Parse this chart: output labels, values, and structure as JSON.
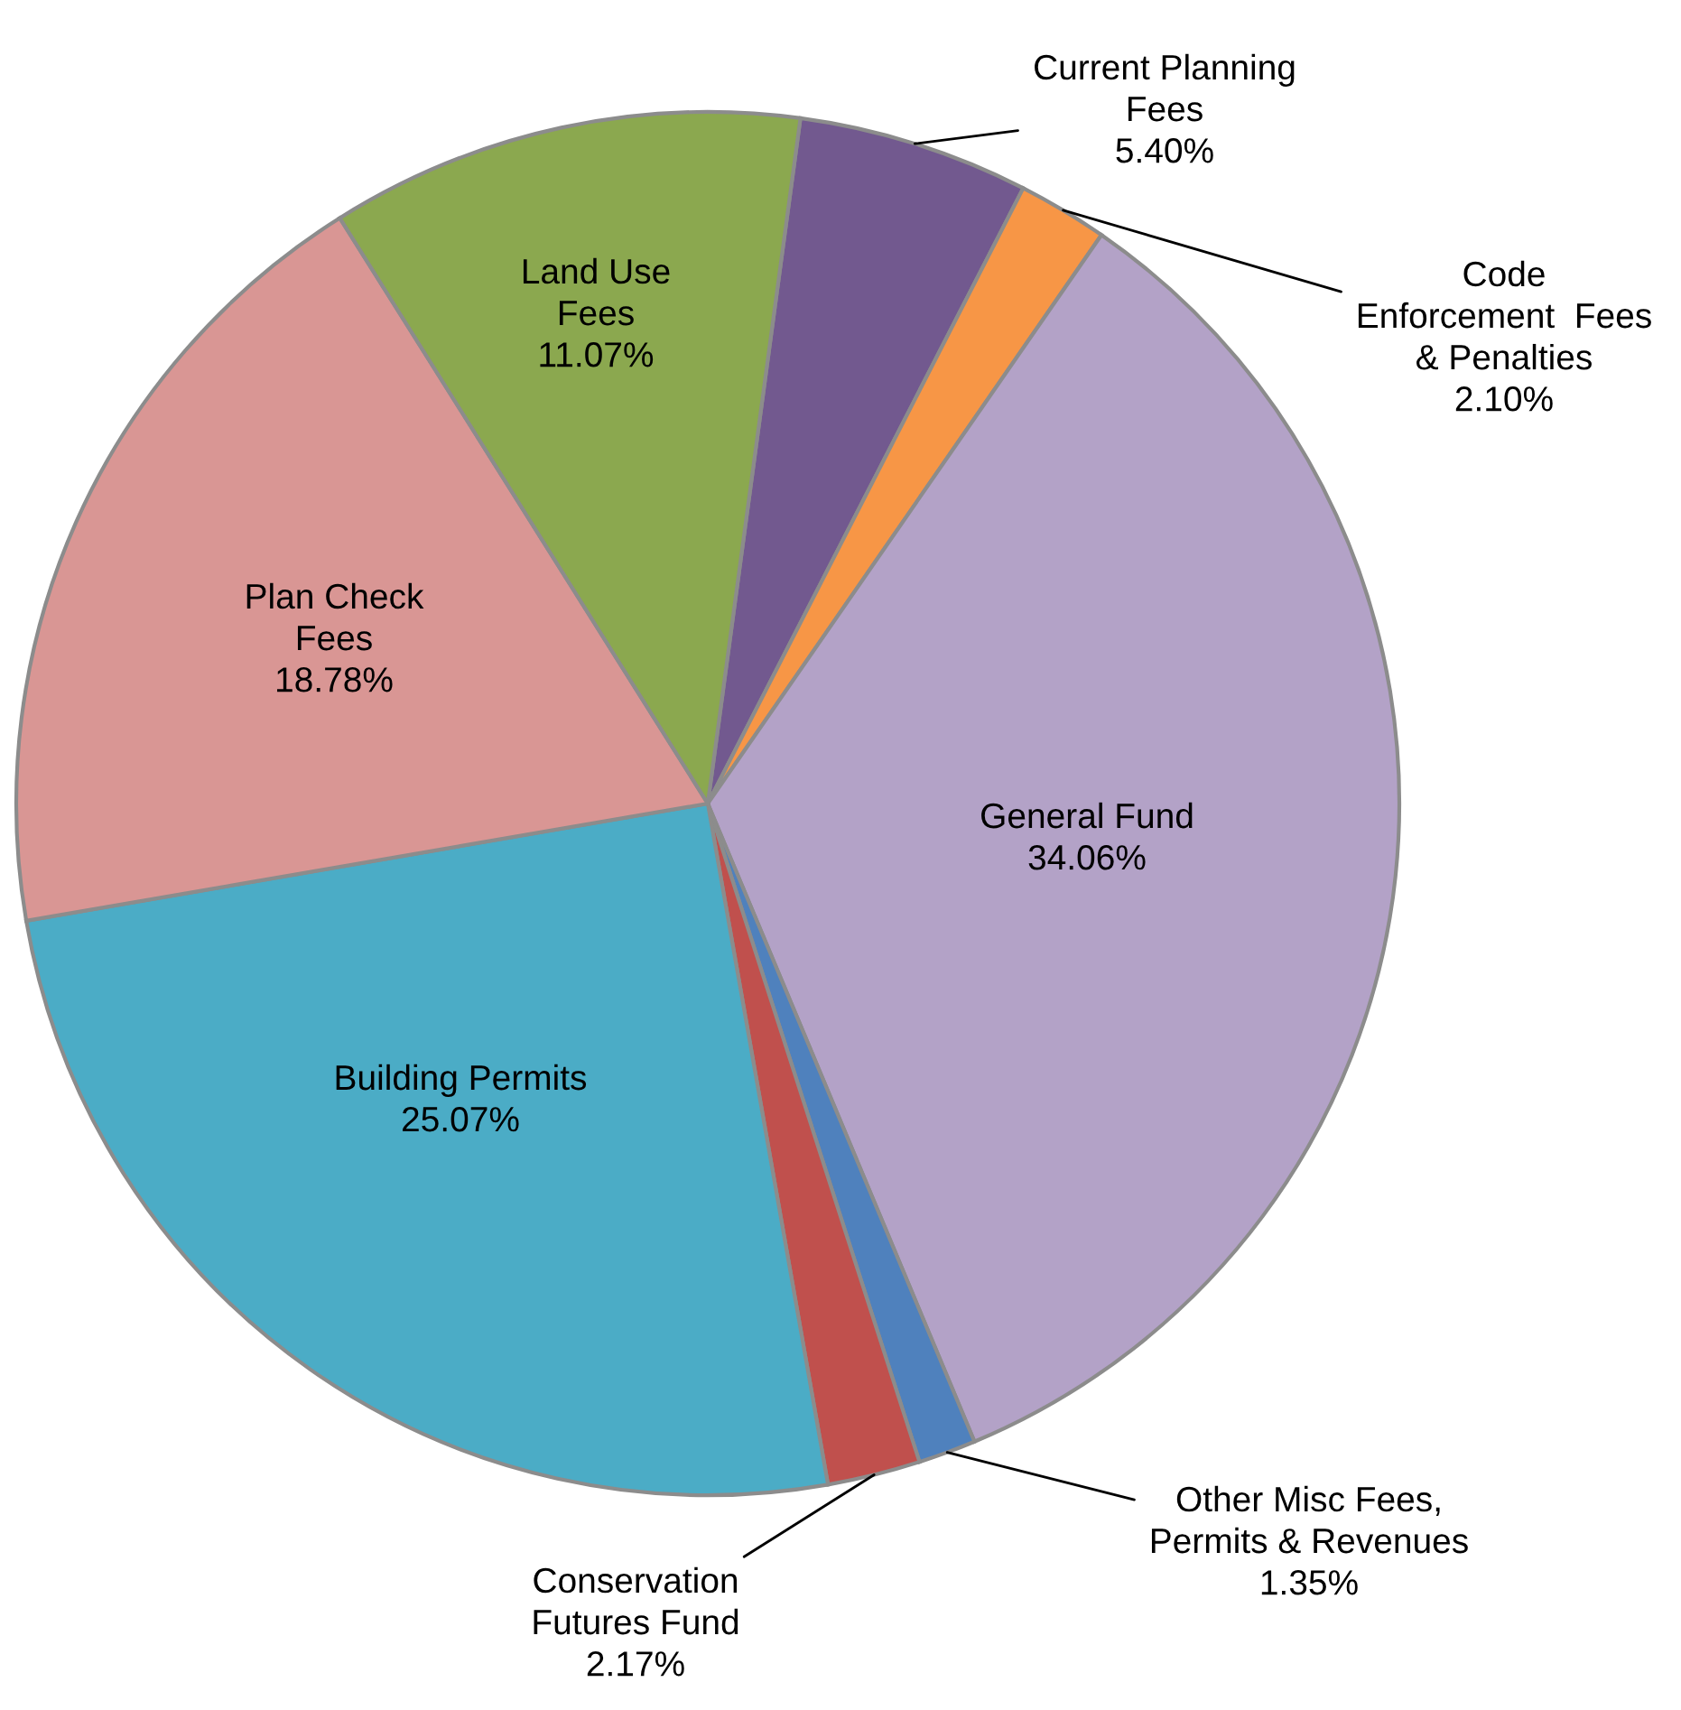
{
  "chart_data": {
    "type": "pie",
    "categories": [
      "Current Planning\nFees",
      "Code\nEnforcement  Fees\n& Penalties",
      "General Fund",
      "Other Misc Fees,\nPermits & Revenues",
      "Conservation\nFutures Fund",
      "Building Permits",
      "Plan Check\nFees",
      "Land Use\nFees"
    ],
    "values": [
      5.4,
      2.1,
      34.06,
      1.35,
      2.17,
      25.07,
      18.78,
      11.07
    ],
    "colors": [
      "#72598f",
      "#f79646",
      "#b3a2c7",
      "#4f81bd",
      "#c0504d",
      "#4bacc6",
      "#d99694",
      "#8ba84f"
    ],
    "value_labels": [
      "5.40%",
      "2.10%",
      "34.06%",
      "1.35%",
      "2.17%",
      "25.07%",
      "18.78%",
      "11.07%"
    ]
  }
}
